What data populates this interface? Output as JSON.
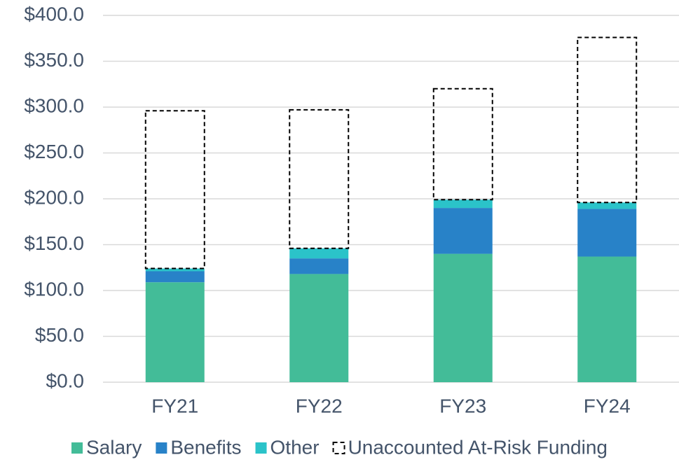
{
  "chart_data": {
    "type": "stacked_bar",
    "categories": [
      "FY21",
      "FY22",
      "FY23",
      "FY24"
    ],
    "series": [
      {
        "name": "Salary",
        "color": "#43bc98",
        "values": [
          109,
          118,
          140,
          137
        ]
      },
      {
        "name": "Benefits",
        "color": "#2882c8",
        "values": [
          12,
          17,
          50,
          52
        ]
      },
      {
        "name": "Other",
        "color": "#2bc3c9",
        "values": [
          3,
          11,
          9,
          7
        ]
      },
      {
        "name": "Unaccounted At-Risk Funding",
        "color": "#000000",
        "outline": "dashed",
        "values": [
          172,
          151,
          121,
          180
        ]
      }
    ],
    "ylim": [
      0,
      400
    ],
    "yticks": [
      {
        "value": 0,
        "label": "$0.0"
      },
      {
        "value": 50,
        "label": "$50.0"
      },
      {
        "value": 100,
        "label": "$100.0"
      },
      {
        "value": 150,
        "label": "$150.0"
      },
      {
        "value": 200,
        "label": "$200.0"
      },
      {
        "value": 250,
        "label": "$250.0"
      },
      {
        "value": 300,
        "label": "$300.0"
      },
      {
        "value": 350,
        "label": "$350.0"
      },
      {
        "value": 400,
        "label": "$400.0"
      }
    ],
    "grid": true,
    "legend": "bottom"
  }
}
